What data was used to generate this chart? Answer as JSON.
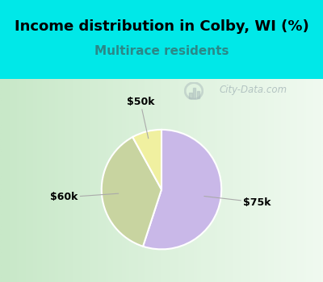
{
  "title": "Income distribution in Colby, WI (%)",
  "subtitle": "Multirace residents",
  "slices": [
    {
      "label": "$75k",
      "value": 55,
      "color": "#c9b8e8"
    },
    {
      "label": "$60k",
      "value": 37,
      "color": "#c8d4a0"
    },
    {
      "label": "$50k",
      "value": 8,
      "color": "#f0f0a0"
    }
  ],
  "bg_cyan": "#00e8e8",
  "bg_chart_left": "#c8e8c8",
  "bg_chart_right": "#e8f8f0",
  "title_fontsize": 13,
  "title_color": "#000000",
  "subtitle_fontsize": 11,
  "subtitle_color": "#2a8888",
  "watermark_text": "City-Data.com",
  "watermark_color": "#aabbbb",
  "startangle": 90,
  "counterclock": false,
  "wedge_edge_color": "white",
  "wedge_linewidth": 1.5,
  "label_fontsize": 9,
  "label_color": "#000000",
  "line_color": "#aaaaaa"
}
